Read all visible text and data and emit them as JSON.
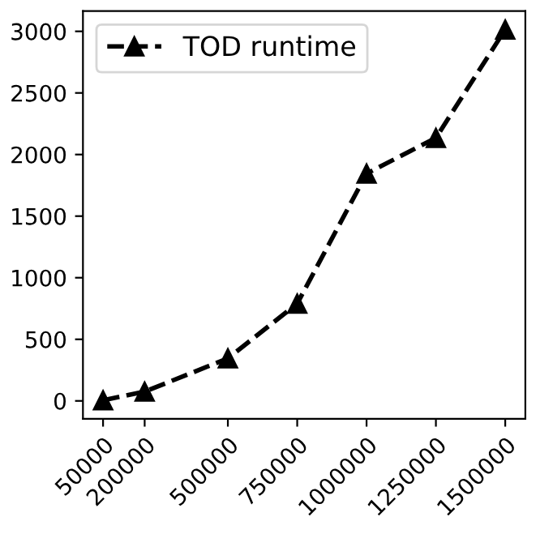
{
  "chart_data": {
    "type": "line",
    "x": [
      50000,
      200000,
      500000,
      750000,
      1000000,
      1250000,
      1500000
    ],
    "series": [
      {
        "name": "TOD runtime",
        "color": "#000000",
        "values": [
          5,
          75,
          345,
          790,
          1845,
          2135,
          3015
        ]
      }
    ],
    "xlim": [
      -22500,
      1572500
    ],
    "ylim": [
      -145,
      3165
    ],
    "xticks": [
      50000,
      200000,
      500000,
      750000,
      1000000,
      1250000,
      1500000
    ],
    "yticks": [
      0,
      500,
      1000,
      1500,
      2000,
      2500,
      3000
    ],
    "marker": "triangle",
    "line_style": "dashed",
    "legend": "top left",
    "grid": false
  }
}
